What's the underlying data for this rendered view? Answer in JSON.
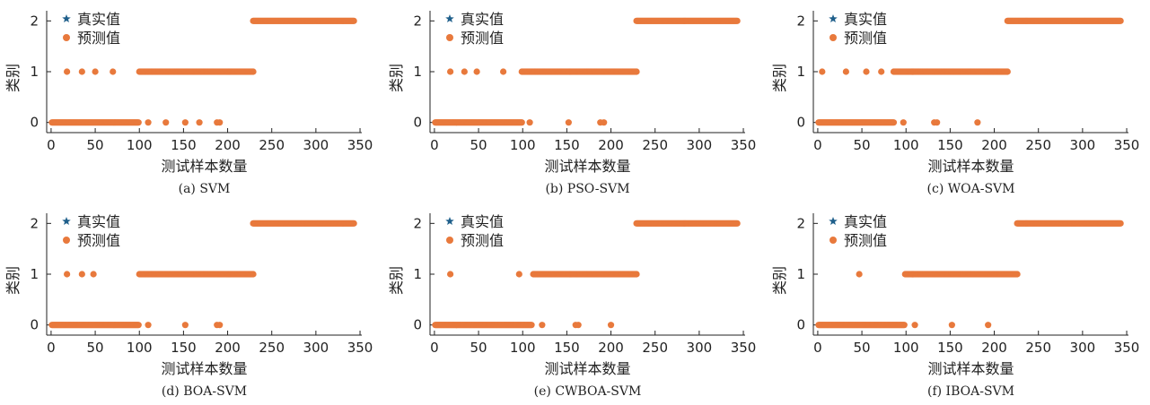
{
  "colors": {
    "true_value": "#1f5f8b",
    "predicted": "#e8793c"
  },
  "chart_data": [
    {
      "type": "scatter",
      "caption": "(a) SVM",
      "xlabel": "测试样本数量",
      "ylabel": "类别",
      "xlim": [
        -5,
        352
      ],
      "ylim": [
        -0.2,
        2.2
      ],
      "xticks": [
        0,
        50,
        100,
        150,
        200,
        250,
        300,
        350
      ],
      "yticks": [
        0,
        1,
        2
      ],
      "grid": false,
      "legend_position": "top-left",
      "series": [
        {
          "name": "真实值",
          "marker": "star",
          "color": "#1f5f8b",
          "segments": []
        },
        {
          "name": "预测值",
          "marker": "circle",
          "color": "#e8793c",
          "segments": [
            {
              "x_start": 1,
              "x_end": 99,
              "y": 0
            },
            {
              "x_start": 100,
              "x_end": 229,
              "y": 1
            },
            {
              "x_start": 229,
              "x_end": 343,
              "y": 2
            }
          ],
          "points": [
            {
              "x": 18,
              "y": 1
            },
            {
              "x": 35,
              "y": 1
            },
            {
              "x": 50,
              "y": 1
            },
            {
              "x": 70,
              "y": 1
            },
            {
              "x": 110,
              "y": 0
            },
            {
              "x": 130,
              "y": 0
            },
            {
              "x": 152,
              "y": 0
            },
            {
              "x": 168,
              "y": 0
            },
            {
              "x": 188,
              "y": 0
            },
            {
              "x": 191,
              "y": 0
            }
          ]
        }
      ]
    },
    {
      "type": "scatter",
      "caption": "(b) PSO-SVM",
      "xlabel": "测试样本数量",
      "ylabel": "类别",
      "xlim": [
        -5,
        352
      ],
      "ylim": [
        -0.2,
        2.2
      ],
      "xticks": [
        0,
        50,
        100,
        150,
        200,
        250,
        300,
        350
      ],
      "yticks": [
        0,
        1,
        2
      ],
      "grid": false,
      "legend_position": "top-left",
      "series": [
        {
          "name": "真实值",
          "marker": "star",
          "color": "#1f5f8b",
          "segments": []
        },
        {
          "name": "预测值",
          "marker": "circle",
          "color": "#e8793c",
          "segments": [
            {
              "x_start": 1,
              "x_end": 99,
              "y": 0
            },
            {
              "x_start": 99,
              "x_end": 229,
              "y": 1
            },
            {
              "x_start": 229,
              "x_end": 343,
              "y": 2
            }
          ],
          "points": [
            {
              "x": 18,
              "y": 1
            },
            {
              "x": 34,
              "y": 1
            },
            {
              "x": 48,
              "y": 1
            },
            {
              "x": 78,
              "y": 1
            },
            {
              "x": 108,
              "y": 0
            },
            {
              "x": 152,
              "y": 0
            },
            {
              "x": 188,
              "y": 0
            },
            {
              "x": 192,
              "y": 0
            }
          ]
        }
      ]
    },
    {
      "type": "scatter",
      "caption": "(c) WOA-SVM",
      "xlabel": "测试样本数量",
      "ylabel": "类别",
      "xlim": [
        -5,
        352
      ],
      "ylim": [
        -0.2,
        2.2
      ],
      "xticks": [
        0,
        50,
        100,
        150,
        200,
        250,
        300,
        350
      ],
      "yticks": [
        0,
        1,
        2
      ],
      "grid": false,
      "legend_position": "top-left",
      "series": [
        {
          "name": "真实值",
          "marker": "star",
          "color": "#1f5f8b",
          "segments": []
        },
        {
          "name": "预测值",
          "marker": "circle",
          "color": "#e8793c",
          "segments": [
            {
              "x_start": 1,
              "x_end": 86,
              "y": 0
            },
            {
              "x_start": 86,
              "x_end": 215,
              "y": 1
            },
            {
              "x_start": 215,
              "x_end": 343,
              "y": 2
            }
          ],
          "points": [
            {
              "x": 5,
              "y": 1
            },
            {
              "x": 32,
              "y": 1
            },
            {
              "x": 55,
              "y": 1
            },
            {
              "x": 72,
              "y": 1
            },
            {
              "x": 97,
              "y": 0
            },
            {
              "x": 132,
              "y": 0
            },
            {
              "x": 135,
              "y": 0
            },
            {
              "x": 181,
              "y": 0
            }
          ]
        }
      ]
    },
    {
      "type": "scatter",
      "caption": "(d) BOA-SVM",
      "xlabel": "测试样本数量",
      "ylabel": "类别",
      "xlim": [
        -5,
        352
      ],
      "ylim": [
        -0.2,
        2.2
      ],
      "xticks": [
        0,
        50,
        100,
        150,
        200,
        250,
        300,
        350
      ],
      "yticks": [
        0,
        1,
        2
      ],
      "grid": false,
      "legend_position": "top-left",
      "series": [
        {
          "name": "真实值",
          "marker": "star",
          "color": "#1f5f8b",
          "segments": []
        },
        {
          "name": "预测值",
          "marker": "circle",
          "color": "#e8793c",
          "segments": [
            {
              "x_start": 1,
              "x_end": 99,
              "y": 0
            },
            {
              "x_start": 100,
              "x_end": 229,
              "y": 1
            },
            {
              "x_start": 229,
              "x_end": 343,
              "y": 2
            }
          ],
          "points": [
            {
              "x": 18,
              "y": 1
            },
            {
              "x": 35,
              "y": 1
            },
            {
              "x": 48,
              "y": 1
            },
            {
              "x": 110,
              "y": 0
            },
            {
              "x": 152,
              "y": 0
            },
            {
              "x": 188,
              "y": 0
            },
            {
              "x": 191,
              "y": 0
            }
          ]
        }
      ]
    },
    {
      "type": "scatter",
      "caption": "(e) CWBOA-SVM",
      "xlabel": "测试样本数量",
      "ylabel": "类别",
      "xlim": [
        -5,
        352
      ],
      "ylim": [
        -0.2,
        2.2
      ],
      "xticks": [
        0,
        50,
        100,
        150,
        200,
        250,
        300,
        350
      ],
      "yticks": [
        0,
        1,
        2
      ],
      "grid": false,
      "legend_position": "top-left",
      "series": [
        {
          "name": "真实值",
          "marker": "star",
          "color": "#1f5f8b",
          "segments": []
        },
        {
          "name": "预测值",
          "marker": "circle",
          "color": "#e8793c",
          "segments": [
            {
              "x_start": 1,
              "x_end": 110,
              "y": 0
            },
            {
              "x_start": 112,
              "x_end": 229,
              "y": 1
            },
            {
              "x_start": 229,
              "x_end": 343,
              "y": 2
            }
          ],
          "points": [
            {
              "x": 18,
              "y": 1
            },
            {
              "x": 96,
              "y": 1
            },
            {
              "x": 122,
              "y": 0
            },
            {
              "x": 160,
              "y": 0
            },
            {
              "x": 163,
              "y": 0
            },
            {
              "x": 200,
              "y": 0
            }
          ]
        }
      ]
    },
    {
      "type": "scatter",
      "caption": "(f) IBOA-SVM",
      "xlabel": "测试样本数量",
      "ylabel": "类别",
      "xlim": [
        -5,
        352
      ],
      "ylim": [
        -0.2,
        2.2
      ],
      "xticks": [
        0,
        50,
        100,
        150,
        200,
        250,
        300,
        350
      ],
      "yticks": [
        0,
        1,
        2
      ],
      "grid": false,
      "legend_position": "top-left",
      "series": [
        {
          "name": "真实值",
          "marker": "star",
          "color": "#1f5f8b",
          "segments": []
        },
        {
          "name": "预测值",
          "marker": "circle",
          "color": "#e8793c",
          "segments": [
            {
              "x_start": 1,
              "x_end": 98,
              "y": 0
            },
            {
              "x_start": 99,
              "x_end": 226,
              "y": 1
            },
            {
              "x_start": 226,
              "x_end": 343,
              "y": 2
            }
          ],
          "points": [
            {
              "x": 47,
              "y": 1
            },
            {
              "x": 110,
              "y": 0
            },
            {
              "x": 152,
              "y": 0
            },
            {
              "x": 193,
              "y": 0
            }
          ]
        }
      ]
    }
  ]
}
